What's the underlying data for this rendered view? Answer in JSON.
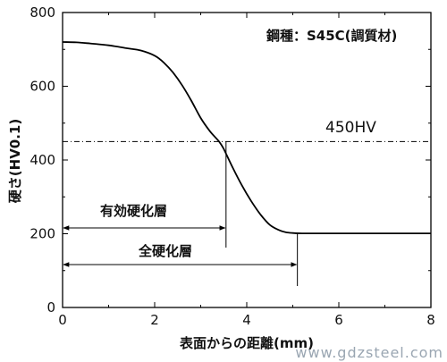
{
  "chart_data": {
    "type": "line",
    "xlabel": "表面からの距離(mm)",
    "ylabel": "硬さ(HV0.1)",
    "xlim": [
      0,
      8
    ],
    "ylim": [
      0,
      800
    ],
    "x_ticks": [
      "0",
      "2",
      "4",
      "6",
      "8"
    ],
    "y_ticks": [
      "0",
      "200",
      "400",
      "600",
      "800"
    ],
    "grid": false,
    "legend": "none",
    "series": [
      {
        "x": [
          0,
          0.3,
          0.6,
          1.0,
          1.4,
          1.7,
          2.0,
          2.2,
          2.4,
          2.6,
          2.8,
          3.0,
          3.2,
          3.4,
          3.5,
          3.7,
          3.9,
          4.1,
          4.3,
          4.5,
          4.7,
          4.85,
          5.0,
          5.2,
          6.0,
          7.0,
          8.0
        ],
        "values": [
          720,
          719,
          716,
          711,
          703,
          697,
          683,
          664,
          637,
          602,
          560,
          514,
          478,
          450,
          430,
          378,
          330,
          288,
          252,
          224,
          210,
          204,
          202,
          201,
          201,
          201,
          201
        ]
      }
    ],
    "reference_line": {
      "y": 450,
      "label": "450HV"
    },
    "annotations": {
      "steel_label": "鋼種：S45C(調質材)",
      "effective_depth": {
        "label": "有効硬化層",
        "x_end": 3.55
      },
      "total_depth": {
        "label": "全硬化層",
        "x_end": 5.1
      }
    },
    "colors": {
      "line": "#000000",
      "axis": "#000000"
    }
  },
  "watermark": "www.gdzsteel.com"
}
